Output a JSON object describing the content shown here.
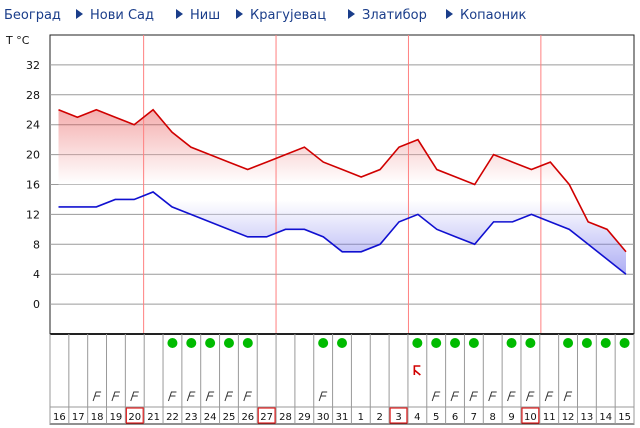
{
  "nav": {
    "items": [
      {
        "label": "Београд",
        "arrow": false
      },
      {
        "label": "Нови Сад",
        "arrow": true
      },
      {
        "label": "Ниш",
        "arrow": true
      },
      {
        "label": "Крагујевац",
        "arrow": true
      },
      {
        "label": "Златибор",
        "arrow": true
      },
      {
        "label": "Копаоник",
        "arrow": true
      }
    ]
  },
  "colors": {
    "max_line": "#d00000",
    "min_line": "#1010d0",
    "week_line": "#ff8080",
    "sun_marker": "#00bb00",
    "nav_link": "#1a3d8a",
    "highlight_box": "#e02020"
  },
  "chart_data": {
    "type": "area",
    "title": "",
    "ylabel": "T °C",
    "ylim": [
      -4,
      36
    ],
    "yticks": [
      0,
      4,
      8,
      12,
      16,
      20,
      24,
      28,
      32
    ],
    "grid": true,
    "days": [
      "16",
      "17",
      "18",
      "19",
      "20",
      "21",
      "22",
      "23",
      "24",
      "25",
      "26",
      "27",
      "28",
      "29",
      "30",
      "31",
      "1",
      "2",
      "3",
      "4",
      "5",
      "6",
      "7",
      "8",
      "9",
      "10",
      "11",
      "12",
      "13",
      "14",
      "15"
    ],
    "highlighted_days": [
      "20",
      "27",
      "3",
      "10"
    ],
    "week_separator_after_days": [
      "20",
      "27",
      "3",
      "10"
    ],
    "series": [
      {
        "values": [
          26,
          25,
          26,
          25,
          24,
          26,
          23,
          21,
          20,
          19,
          18,
          19,
          20,
          21,
          19,
          18,
          17,
          18,
          21,
          22,
          18,
          17,
          16,
          20,
          19,
          18,
          19,
          16,
          11,
          10,
          7
        ]
      },
      {
        "values": [
          13,
          13,
          13,
          14,
          14,
          15,
          13,
          12,
          11,
          10,
          9,
          9,
          10,
          10,
          9,
          7,
          7,
          8,
          11,
          12,
          10,
          9,
          8,
          11,
          11,
          12,
          11,
          10,
          8,
          6,
          4
        ]
      }
    ],
    "day_icons": [
      {
        "day": "18",
        "icon": "wind-flags-icon"
      },
      {
        "day": "19",
        "icon": "wind-flags-icon"
      },
      {
        "day": "20",
        "icon": "wind-flags-icon"
      },
      {
        "day": "22",
        "icon": "sun-dot-icon"
      },
      {
        "day": "22",
        "icon": "wind-flags-icon"
      },
      {
        "day": "23",
        "icon": "sun-dot-icon"
      },
      {
        "day": "23",
        "icon": "wind-flags-icon"
      },
      {
        "day": "24",
        "icon": "sun-dot-icon"
      },
      {
        "day": "24",
        "icon": "wind-flags-icon"
      },
      {
        "day": "25",
        "icon": "sun-dot-icon"
      },
      {
        "day": "25",
        "icon": "wind-flags-icon"
      },
      {
        "day": "26",
        "icon": "sun-dot-icon"
      },
      {
        "day": "26",
        "icon": "wind-flags-icon"
      },
      {
        "day": "30",
        "icon": "sun-dot-icon"
      },
      {
        "day": "30",
        "icon": "wind-flags-icon"
      },
      {
        "day": "31",
        "icon": "sun-dot-icon"
      },
      {
        "day": "4",
        "icon": "sun-dot-icon"
      },
      {
        "day": "4",
        "icon": "wind-change-icon"
      },
      {
        "day": "5",
        "icon": "sun-dot-icon"
      },
      {
        "day": "5",
        "icon": "wind-flags-icon"
      },
      {
        "day": "6",
        "icon": "sun-dot-icon"
      },
      {
        "day": "6",
        "icon": "wind-flags-icon"
      },
      {
        "day": "7",
        "icon": "sun-dot-icon"
      },
      {
        "day": "7",
        "icon": "wind-flags-icon"
      },
      {
        "day": "8",
        "icon": "wind-flags-icon"
      },
      {
        "day": "9",
        "icon": "sun-dot-icon"
      },
      {
        "day": "9",
        "icon": "wind-flags-icon"
      },
      {
        "day": "10",
        "icon": "sun-dot-icon"
      },
      {
        "day": "10",
        "icon": "wind-flags-icon"
      },
      {
        "day": "11",
        "icon": "wind-flags-icon"
      },
      {
        "day": "12",
        "icon": "sun-dot-icon"
      },
      {
        "day": "12",
        "icon": "wind-flags-icon"
      },
      {
        "day": "13",
        "icon": "sun-dot-icon"
      },
      {
        "day": "14",
        "icon": "sun-dot-icon"
      },
      {
        "day": "15",
        "icon": "sun-dot-icon"
      }
    ]
  }
}
